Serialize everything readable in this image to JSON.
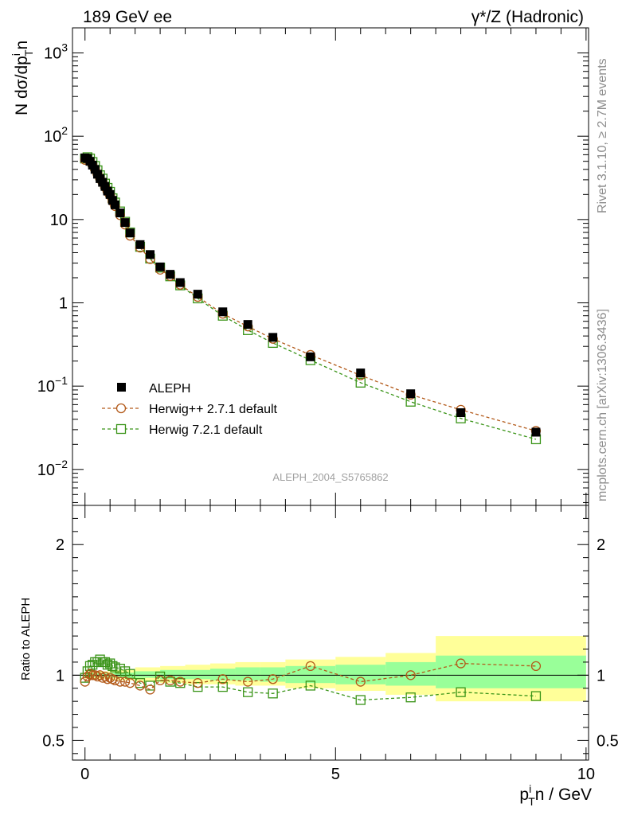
{
  "header": {
    "left_label": "189 GeV ee",
    "right_label": "γ*/Z (Hadronic)"
  },
  "side_text": {
    "rivet": "Rivet 3.1.10, ≥ 2.7M events",
    "mcplots": "mcplots.cern.ch [arXiv:1306.3436]"
  },
  "analysis_id": "ALEPH_2004_S5765862",
  "legend": {
    "placement": "lower-left of main panel",
    "entries": [
      {
        "label": "ALEPH",
        "marker": "filled-square",
        "color": "#000000"
      },
      {
        "label": "Herwig++ 2.7.1 default",
        "marker": "open-circle",
        "color": "#b35a1a",
        "line": "dashed"
      },
      {
        "label": "Herwig 7.2.1 default",
        "marker": "open-square",
        "color": "#3a9418",
        "line": "dashed"
      }
    ]
  },
  "axes": {
    "main_ylabel": "N dσ/dp_T^i n",
    "ratio_ylabel": "Ratio to ALEPH",
    "xlabel": "p_T^i n / GeV"
  },
  "colors": {
    "data": "#000000",
    "herwigpp": "#b35a1a",
    "herwig7": "#3a9418",
    "band_outer": "#ffff99",
    "band_inner": "#99ff99",
    "side_text": "#8c8c8c"
  },
  "chart_data": [
    {
      "type": "scatter",
      "panel": "main",
      "yscale": "log",
      "xlim": [
        -0.25,
        10.05
      ],
      "ylim": [
        0.0037,
        2000
      ],
      "yticks": [
        {
          "value": 0.01,
          "label": "10^-2"
        },
        {
          "value": 0.1,
          "label": "10^-1"
        },
        {
          "value": 1,
          "label": "1"
        },
        {
          "value": 10,
          "label": "10"
        },
        {
          "value": 100,
          "label": "10^2"
        },
        {
          "value": 1000,
          "label": "10^3"
        }
      ],
      "x": [
        0.0,
        0.05,
        0.1,
        0.15,
        0.2,
        0.25,
        0.3,
        0.35,
        0.4,
        0.45,
        0.5,
        0.55,
        0.6,
        0.7,
        0.8,
        0.9,
        1.1,
        1.3,
        1.5,
        1.7,
        1.9,
        2.25,
        2.75,
        3.25,
        3.75,
        4.5,
        5.5,
        6.5,
        7.5,
        9.0
      ],
      "series": [
        {
          "name": "ALEPH",
          "marker": "filled-square",
          "values": [
            55,
            54,
            50,
            45,
            40,
            35,
            31,
            28,
            25,
            22,
            20,
            17,
            15,
            12,
            9.2,
            6.9,
            5.0,
            3.8,
            2.7,
            2.2,
            1.75,
            1.27,
            0.78,
            0.55,
            0.385,
            0.225,
            0.144,
            0.081,
            0.048,
            0.028
          ]
        },
        {
          "name": "Herwig++ 2.7.1 default",
          "marker": "open-circle",
          "values": [
            52,
            53,
            50,
            45,
            40,
            35,
            31,
            28,
            24.5,
            21.5,
            19.5,
            16.5,
            14.5,
            11.3,
            8.7,
            6.4,
            4.6,
            3.35,
            2.5,
            2.1,
            1.65,
            1.18,
            0.74,
            0.52,
            0.37,
            0.237,
            0.135,
            0.079,
            0.052,
            0.029
          ]
        },
        {
          "name": "Herwig 7.2.1 default",
          "marker": "open-square",
          "values": [
            54,
            56,
            54,
            49,
            44,
            39,
            34,
            31,
            27,
            24,
            21.5,
            18,
            16,
            12.5,
            9.4,
            7.0,
            4.7,
            3.4,
            2.65,
            2.08,
            1.62,
            1.13,
            0.7,
            0.47,
            0.33,
            0.205,
            0.11,
            0.065,
            0.041,
            0.023
          ]
        }
      ]
    },
    {
      "type": "scatter",
      "panel": "ratio",
      "xlim": [
        -0.25,
        10.05
      ],
      "ylim": [
        0.35,
        2.3
      ],
      "yticks": [
        {
          "value": 0.5,
          "label": "0.5"
        },
        {
          "value": 1,
          "label": "1"
        },
        {
          "value": 2,
          "label": "2"
        }
      ],
      "xticks": [
        {
          "value": 0,
          "label": "0"
        },
        {
          "value": 5,
          "label": "5"
        },
        {
          "value": 10,
          "label": "10"
        }
      ],
      "x": [
        0.0,
        0.05,
        0.1,
        0.15,
        0.2,
        0.25,
        0.3,
        0.35,
        0.4,
        0.45,
        0.5,
        0.55,
        0.6,
        0.7,
        0.8,
        0.9,
        1.1,
        1.3,
        1.5,
        1.7,
        1.9,
        2.25,
        2.75,
        3.25,
        3.75,
        4.5,
        5.5,
        6.5,
        7.5,
        9.0
      ],
      "series": [
        {
          "name": "Herwig++ 2.7.1 default",
          "marker": "open-circle",
          "values": [
            0.95,
            0.99,
            1.01,
            1.0,
            1.0,
            0.99,
            1.0,
            0.98,
            0.99,
            0.97,
            0.98,
            0.97,
            0.96,
            0.95,
            0.95,
            0.94,
            0.92,
            0.89,
            0.96,
            0.96,
            0.95,
            0.94,
            0.97,
            0.95,
            0.97,
            1.07,
            0.95,
            1.0,
            1.09,
            1.07
          ]
        },
        {
          "name": "Herwig 7.2.1 default",
          "marker": "open-square",
          "values": [
            0.98,
            1.03,
            1.07,
            1.08,
            1.1,
            1.1,
            1.12,
            1.1,
            1.1,
            1.08,
            1.09,
            1.07,
            1.06,
            1.05,
            1.03,
            1.01,
            0.94,
            0.92,
            0.99,
            0.95,
            0.94,
            0.91,
            0.91,
            0.87,
            0.86,
            0.92,
            0.81,
            0.83,
            0.87,
            0.84
          ]
        }
      ],
      "band_edges": [
        0.0,
        0.5,
        1.0,
        1.5,
        2.0,
        2.5,
        3.0,
        3.5,
        4.0,
        5.0,
        6.0,
        7.0,
        10.0
      ],
      "band_outer": [
        [
          0.97,
          1.03
        ],
        [
          0.96,
          1.04
        ],
        [
          0.95,
          1.06
        ],
        [
          0.94,
          1.07
        ],
        [
          0.93,
          1.08
        ],
        [
          0.93,
          1.09
        ],
        [
          0.92,
          1.1
        ],
        [
          0.92,
          1.1
        ],
        [
          0.9,
          1.12
        ],
        [
          0.88,
          1.14
        ],
        [
          0.85,
          1.17
        ],
        [
          0.8,
          1.3
        ]
      ],
      "band_inner": [
        [
          0.985,
          1.015
        ],
        [
          0.98,
          1.02
        ],
        [
          0.98,
          1.03
        ],
        [
          0.97,
          1.04
        ],
        [
          0.97,
          1.04
        ],
        [
          0.96,
          1.05
        ],
        [
          0.96,
          1.06
        ],
        [
          0.95,
          1.06
        ],
        [
          0.94,
          1.07
        ],
        [
          0.93,
          1.08
        ],
        [
          0.92,
          1.1
        ],
        [
          0.9,
          1.15
        ]
      ]
    }
  ]
}
